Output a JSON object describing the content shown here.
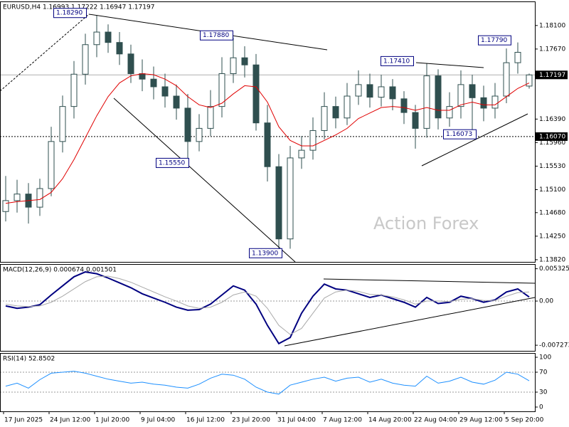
{
  "chart_data": [
    {
      "type": "candlestick",
      "title": "EURUSD,H4  1.16993 1.17222 1.16947 1.17197",
      "watermark": "Action Forex",
      "categories": [
        "17 Jun 2025",
        null,
        null,
        null,
        "24 Jun 12:00",
        null,
        null,
        null,
        "1 Jul 20:00",
        null,
        null,
        null,
        "9 Jul 04:00",
        null,
        null,
        null,
        "16 Jul 12:00",
        null,
        null,
        null,
        "23 Jul 20:00",
        null,
        null,
        null,
        "31 Jul 04:00",
        null,
        null,
        null,
        "7 Aug 12:00",
        null,
        null,
        null,
        "14 Aug 20:00",
        null,
        null,
        null,
        "22 Aug 04:00",
        null,
        null,
        null,
        "29 Aug 12:00",
        null,
        null,
        null,
        "5 Sep 20:00",
        null,
        null
      ],
      "open": [
        1.147,
        1.149,
        1.1502,
        1.1478,
        1.1512,
        1.1598,
        1.1662,
        1.1721,
        1.1775,
        1.1798,
        1.1779,
        1.1758,
        1.1722,
        1.1712,
        1.1698,
        1.1681,
        1.1659,
        1.1598,
        1.1622,
        1.1662,
        1.1722,
        1.1751,
        1.1738,
        1.1632,
        1.1552,
        1.142,
        1.1568,
        1.1582,
        1.1618,
        1.1662,
        1.1641,
        1.1681,
        1.1702,
        1.1679,
        1.1698,
        1.1676,
        1.1651,
        1.1622,
        1.1718,
        1.1641,
        1.1662,
        1.1702,
        1.1678,
        1.1659,
        1.1681,
        1.1742,
        1.16993
      ],
      "high": [
        1.1535,
        1.1528,
        1.1522,
        1.153,
        1.1625,
        1.1682,
        1.1745,
        1.1795,
        1.1829,
        1.1812,
        1.1798,
        1.1775,
        1.1748,
        1.1735,
        1.1722,
        1.1702,
        1.1685,
        1.1648,
        1.1692,
        1.1752,
        1.1788,
        1.1772,
        1.1758,
        1.1665,
        1.1575,
        1.159,
        1.1608,
        1.1642,
        1.1688,
        1.168,
        1.1705,
        1.1728,
        1.1722,
        1.172,
        1.1712,
        1.169,
        1.1665,
        1.1741,
        1.173,
        1.1688,
        1.1728,
        1.172,
        1.17,
        1.1705,
        1.1768,
        1.1779,
        1.17222
      ],
      "low": [
        1.1452,
        1.1468,
        1.1448,
        1.1462,
        1.1498,
        1.1578,
        1.164,
        1.1702,
        1.1752,
        1.176,
        1.1738,
        1.1705,
        1.169,
        1.1675,
        1.166,
        1.1638,
        1.1555,
        1.158,
        1.1608,
        1.1642,
        1.1705,
        1.1715,
        1.1618,
        1.1525,
        1.139,
        1.1402,
        1.1548,
        1.1565,
        1.1602,
        1.1622,
        1.1628,
        1.1665,
        1.166,
        1.1662,
        1.1655,
        1.163,
        1.1585,
        1.1605,
        1.162,
        1.1625,
        1.164,
        1.1607,
        1.1635,
        1.164,
        1.1668,
        1.1722,
        1.16947
      ],
      "close": [
        1.149,
        1.1502,
        1.1478,
        1.1512,
        1.1598,
        1.1662,
        1.1721,
        1.1775,
        1.1798,
        1.1779,
        1.1758,
        1.1722,
        1.1712,
        1.1698,
        1.1681,
        1.1659,
        1.1598,
        1.1622,
        1.1662,
        1.1722,
        1.1751,
        1.1738,
        1.1632,
        1.1552,
        1.142,
        1.1568,
        1.1582,
        1.1618,
        1.1662,
        1.1641,
        1.1681,
        1.1702,
        1.1679,
        1.1698,
        1.1676,
        1.1651,
        1.1622,
        1.1718,
        1.1641,
        1.1662,
        1.1702,
        1.1678,
        1.1659,
        1.1681,
        1.1742,
        1.1761,
        1.17197
      ],
      "color": "#2f4f4f",
      "series": [
        {
          "color": "#e00000",
          "values": [
            1.1485,
            1.1488,
            1.149,
            1.1492,
            1.1505,
            1.153,
            1.1565,
            1.1605,
            1.1645,
            1.168,
            1.1705,
            1.1718,
            1.1722,
            1.172,
            1.1712,
            1.17,
            1.168,
            1.1665,
            1.166,
            1.1668,
            1.1685,
            1.17,
            1.1698,
            1.167,
            1.1625,
            1.16,
            1.159,
            1.159,
            1.16,
            1.161,
            1.1622,
            1.164,
            1.165,
            1.166,
            1.1662,
            1.166,
            1.1655,
            1.166,
            1.1655,
            1.1655,
            1.1665,
            1.167,
            1.1665,
            1.1665,
            1.168,
            1.1695,
            1.1705
          ]
        }
      ],
      "ylim": [
        1.1378,
        1.1854
      ],
      "yticks": [
        {
          "value": 1.181,
          "label": "1.18100"
        },
        {
          "value": 1.1767,
          "label": "1.17670"
        },
        {
          "value": 1.1639,
          "label": "1.16390"
        },
        {
          "value": 1.1596,
          "label": "1.15960"
        },
        {
          "value": 1.1553,
          "label": "1.15530"
        },
        {
          "value": 1.151,
          "label": "1.15100"
        },
        {
          "value": 1.1468,
          "label": "1.14680"
        },
        {
          "value": 1.1425,
          "label": "1.14250"
        },
        {
          "value": 1.1382,
          "label": "1.13820"
        }
      ],
      "hlines": [
        {
          "value": 1.17197,
          "label": "1.17197",
          "style": "solid"
        },
        {
          "value": 1.1607,
          "label": "1.16070",
          "style": "dotted"
        }
      ],
      "annotations": [
        {
          "value": 1.1829,
          "label": "1.18290"
        },
        {
          "value": 1.1788,
          "label": "1.17880"
        },
        {
          "value": 1.1779,
          "label": "1.17790"
        },
        {
          "value": 1.1741,
          "label": "1.17410"
        },
        {
          "value": 1.16073,
          "label": "1.16073"
        },
        {
          "value": 1.1555,
          "label": "1.15550"
        },
        {
          "value": 1.139,
          "label": "1.13900"
        }
      ]
    },
    {
      "type": "line",
      "title": "MACD(12,26,9) 0.000674 0.001501",
      "series": [
        {
          "color": "#000080",
          "style": "solid",
          "values": [
            -0.0008,
            -0.0012,
            -0.001,
            -0.0006,
            0.001,
            0.0025,
            0.004,
            0.0048,
            0.0045,
            0.0038,
            0.003,
            0.0022,
            0.0012,
            0.0005,
            -0.0002,
            -0.001,
            -0.0015,
            -0.0014,
            -0.0005,
            0.001,
            0.0025,
            0.0018,
            -0.0005,
            -0.004,
            -0.007,
            -0.006,
            -0.002,
            0.0008,
            0.0028,
            0.002,
            0.0018,
            0.0012,
            0.0006,
            0.001,
            0.0004,
            -0.0002,
            -0.001,
            0.0006,
            -0.0004,
            -0.0002,
            0.0008,
            0.0004,
            -0.0002,
            0.0002,
            0.0015,
            0.002,
            0.000674
          ]
        },
        {
          "color": "#a9a9a9",
          "style": "thin",
          "values": [
            -0.0005,
            -0.0008,
            -0.0009,
            -0.0008,
            -0.0002,
            0.0008,
            0.002,
            0.0032,
            0.004,
            0.0041,
            0.0037,
            0.0031,
            0.0023,
            0.0015,
            0.0007,
            0.0,
            -0.0008,
            -0.0012,
            -0.001,
            -0.0002,
            0.001,
            0.0015,
            0.0008,
            -0.0012,
            -0.004,
            -0.0055,
            -0.0045,
            -0.002,
            0.0005,
            0.0015,
            0.0018,
            0.0016,
            0.0011,
            0.001,
            0.0007,
            0.0002,
            -0.0005,
            0.0,
            0.0,
            -0.0001,
            0.0003,
            0.0004,
            0.0001,
            0.0001,
            0.0008,
            0.0014,
            0.001501
          ]
        }
      ],
      "ylim": [
        -0.0082,
        0.0061
      ],
      "yticks": [
        0.005325,
        {
          "value": 0,
          "label": "0.00"
        },
        -0.007273
      ],
      "levels": [
        0
      ]
    },
    {
      "type": "line",
      "title": "RSI(14) 52.8502",
      "series": [
        {
          "color": "#1e90ff",
          "style": "thin",
          "values": [
            42,
            48,
            38,
            55,
            68,
            70,
            72,
            68,
            62,
            56,
            52,
            48,
            50,
            46,
            44,
            40,
            38,
            46,
            58,
            66,
            64,
            56,
            40,
            30,
            26,
            44,
            50,
            56,
            60,
            52,
            58,
            60,
            50,
            56,
            48,
            44,
            42,
            62,
            48,
            52,
            60,
            50,
            46,
            54,
            70,
            66,
            52.8502
          ]
        }
      ],
      "ylim": [
        -8.6,
        108.6
      ],
      "yticks": [
        100,
        70,
        30,
        0
      ],
      "levels": [
        70,
        30
      ]
    }
  ]
}
